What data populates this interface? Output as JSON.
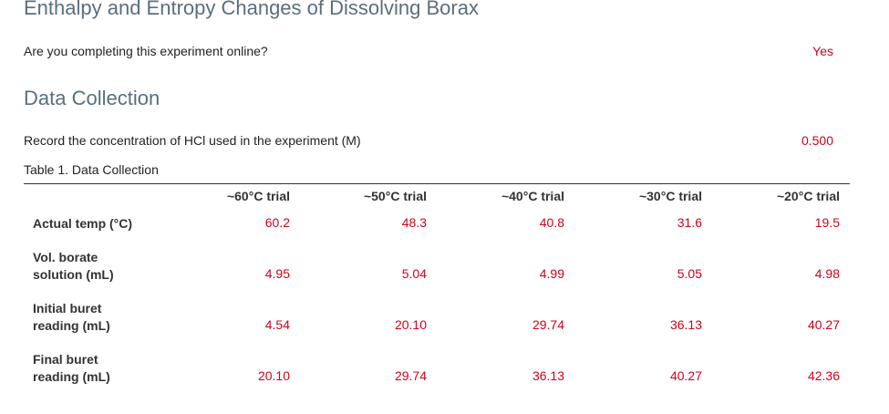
{
  "page_title": "Enthalpy and Entropy Changes of Dissolving Borax",
  "online_question": {
    "question": "Are you completing this experiment online?",
    "answer": "Yes"
  },
  "section_title": "Data Collection",
  "hcl_question": {
    "question": "Record the concentration of HCl used in the experiment (M)",
    "answer": "0.500"
  },
  "table": {
    "caption": "Table 1. Data Collection",
    "columns": [
      "~60°C trial",
      "~50°C trial",
      "~40°C trial",
      "~30°C trial",
      "~20°C trial"
    ],
    "rows": [
      {
        "label_line1": "Actual temp (°C)",
        "label_line2": "",
        "values": [
          "60.2",
          "48.3",
          "40.8",
          "31.6",
          "19.5"
        ]
      },
      {
        "label_line1": "Vol. borate",
        "label_line2": "solution (mL)",
        "values": [
          "4.95",
          "5.04",
          "4.99",
          "5.05",
          "4.98"
        ]
      },
      {
        "label_line1": "Initial buret",
        "label_line2": "reading (mL)",
        "values": [
          "4.54",
          "20.10",
          "29.74",
          "36.13",
          "40.27"
        ]
      },
      {
        "label_line1": "Final buret",
        "label_line2": "reading (mL)",
        "values": [
          "20.10",
          "29.74",
          "36.13",
          "40.27",
          "42.36"
        ]
      }
    ]
  }
}
